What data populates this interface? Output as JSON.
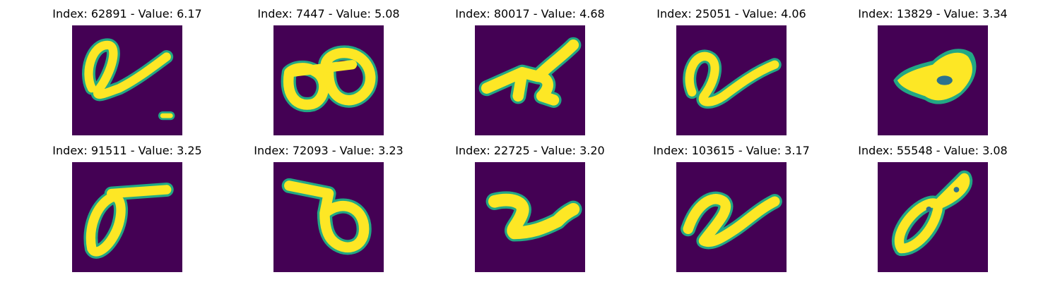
{
  "figure": {
    "panels": [
      {
        "title": "Index: 62891 - Value: 6.17",
        "glyph": "a-tail-dot"
      },
      {
        "title": "Index: 7447 - Value: 5.08",
        "glyph": "double-loop"
      },
      {
        "title": "Index: 80017 - Value: 4.68",
        "glyph": "slanted-4"
      },
      {
        "title": "Index: 25051 - Value: 4.06",
        "glyph": "a-tail"
      },
      {
        "title": "Index: 13829 - Value: 3.34",
        "glyph": "filled-blob"
      },
      {
        "title": "Index: 91511 - Value: 3.25",
        "glyph": "sigma-loop"
      },
      {
        "title": "Index: 72093 - Value: 3.23",
        "glyph": "reverse-d"
      },
      {
        "title": "Index: 22725 - Value: 3.20",
        "glyph": "curly-2"
      },
      {
        "title": "Index: 103615 - Value: 3.17",
        "glyph": "a-tail-2"
      },
      {
        "title": "Index: 55548 - Value: 3.08",
        "glyph": "slanted-8"
      }
    ]
  },
  "colors": {
    "background": "#440154",
    "stroke": "#fde725",
    "edge": "#22a884"
  }
}
